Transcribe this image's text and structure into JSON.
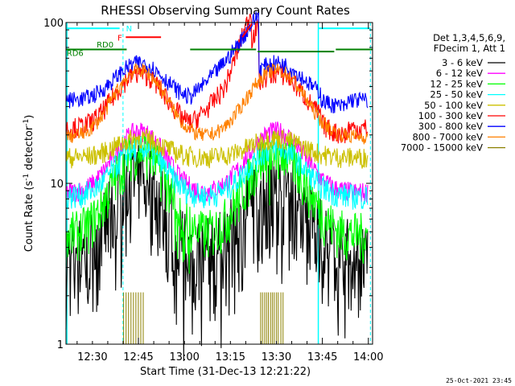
{
  "chart_data": {
    "type": "line",
    "title": "RHESSI Observing Summary Count Rates",
    "xlabel": "Start Time (31-Dec-13 12:21:22)",
    "ylabel_main": "Count Rate (s",
    "ylabel_sup1": "-1",
    "ylabel_mid": " detector",
    "ylabel_sup2": "-1",
    "ylabel_end": ")",
    "y_log": true,
    "ylim": [
      1,
      100
    ],
    "y_ticks": [
      "1",
      "10",
      "100"
    ],
    "x_ticks": [
      "12:30",
      "12:45",
      "13:00",
      "13:15",
      "13:30",
      "13:45",
      "14:00"
    ],
    "xlim_minutes": [
      0,
      100
    ],
    "x_tick_minutes": [
      8.63,
      23.63,
      38.63,
      53.63,
      68.63,
      83.63,
      98.63
    ],
    "legend_header": [
      "Det 1,3,4,5,6,9,",
      "FDecim 1, Att 1"
    ],
    "footer_date": "25-Oct-2021 23:45",
    "series": [
      {
        "name": "3 - 6 keV",
        "color": "#000000",
        "base": 3.6,
        "amp": 3.0,
        "noise": 0.22,
        "spikes": true
      },
      {
        "name": "6 - 12 keV",
        "color": "#ff00ff",
        "base": 8.8,
        "amp": 2.4,
        "noise": 0.05
      },
      {
        "name": "12 - 25 keV",
        "color": "#00ff00",
        "base": 4.8,
        "amp": 3.4,
        "noise": 0.12
      },
      {
        "name": "25 - 50 keV",
        "color": "#00ffff",
        "base": 8.3,
        "amp": 2.0,
        "noise": 0.06
      },
      {
        "name": "50 - 100 keV",
        "color": "#ccc000",
        "base": 14.5,
        "amp": 1.32,
        "noise": 0.05
      },
      {
        "name": "100 - 300 keV",
        "color": "#ff0000",
        "base": 22,
        "amp": 2.2,
        "noise": 0.05
      },
      {
        "name": "300 - 800 keV",
        "color": "#0000ff",
        "base": 33,
        "amp": 1.7,
        "noise": 0.04
      },
      {
        "name": "800 - 7000 keV",
        "color": "#ff8000",
        "base": 19.5,
        "amp": 2.6,
        "noise": 0.035
      },
      {
        "name": "7000 - 15000 keV",
        "color": "#8b8000",
        "base": 0,
        "amp": 0,
        "noise": 0
      }
    ],
    "flags": {
      "N_label": "N",
      "F_label": "F",
      "RD0_label": "RD0",
      "RD6_label": "RD6",
      "N_color": "#00ffff",
      "F_color": "#ff0000",
      "RD_color": "#008000"
    }
  }
}
